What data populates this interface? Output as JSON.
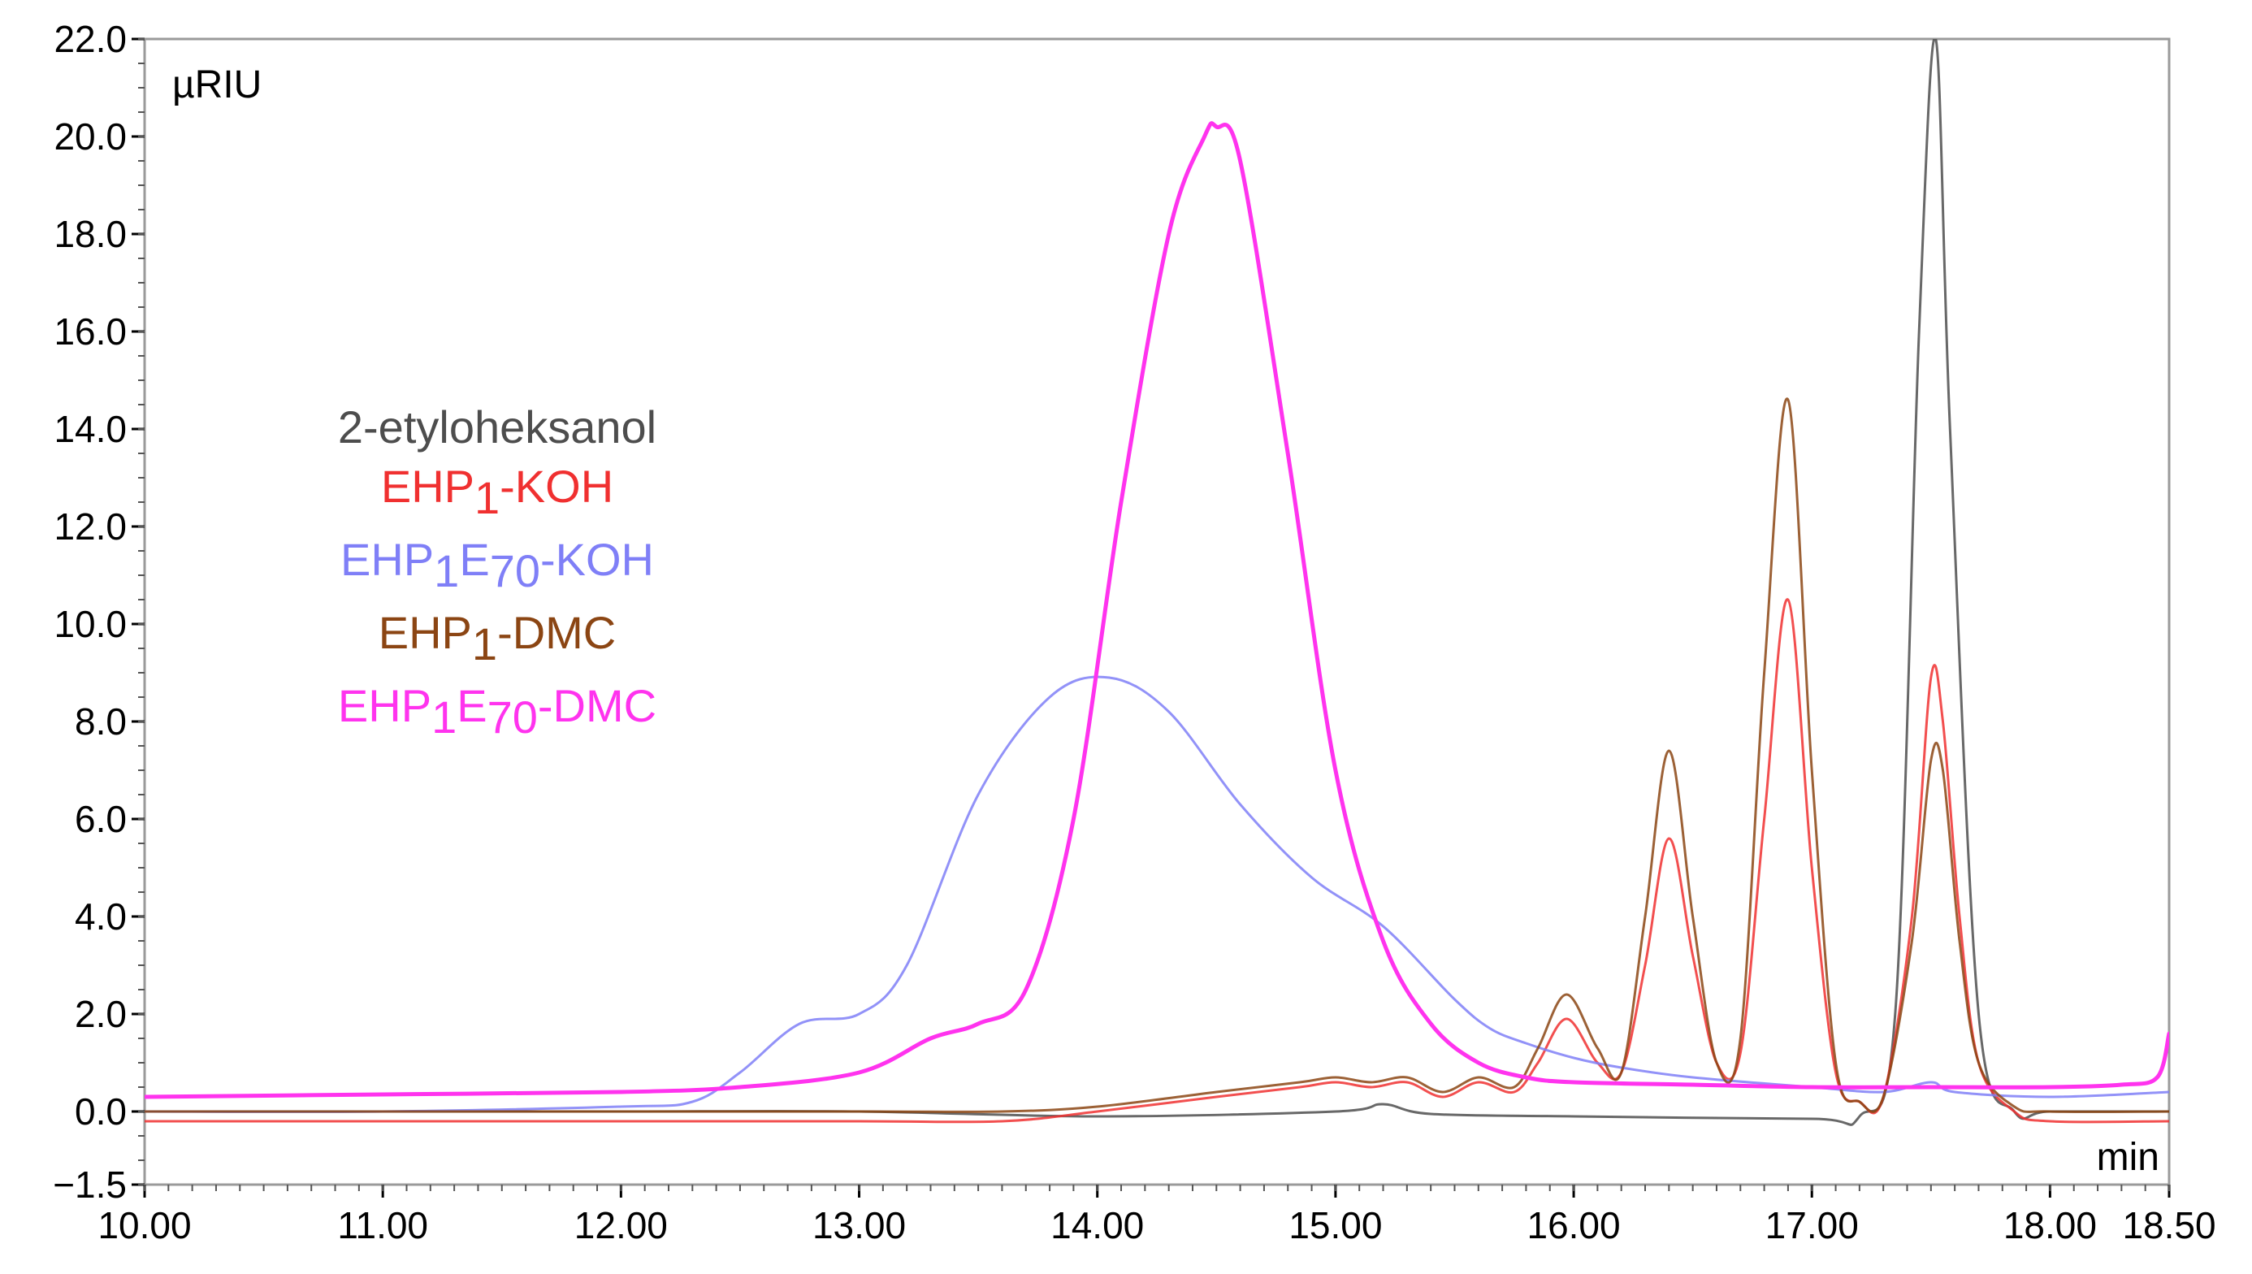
{
  "chart_data": {
    "type": "line",
    "title": "",
    "xlabel": "min",
    "ylabel": "µRIU",
    "xlim": [
      10.0,
      18.5
    ],
    "ylim": [
      -1.5,
      22.0
    ],
    "x_ticks": [
      "10.00",
      "11.00",
      "12.00",
      "13.00",
      "14.00",
      "15.00",
      "16.00",
      "17.00",
      "18.00",
      "18.50"
    ],
    "y_ticks": [
      "22.0",
      "20.0",
      "18.0",
      "16.0",
      "14.0",
      "12.0",
      "10.0",
      "8.0",
      "6.0",
      "4.0",
      "2.0",
      "0.0",
      "−1.5"
    ],
    "grid": false,
    "legend_position": "left",
    "series": [
      {
        "name": "2-etyloheksanol",
        "legend": [
          {
            "t": "2-etyloheksanol",
            "sub": false
          }
        ],
        "color": "#4d4d4d",
        "x": [
          10.0,
          11.0,
          12.0,
          13.0,
          14.0,
          15.0,
          15.2,
          15.4,
          16.0,
          17.0,
          17.2,
          17.35,
          17.45,
          17.52,
          17.58,
          17.7,
          17.85,
          18.0,
          18.5
        ],
        "y": [
          0.0,
          0.0,
          0.0,
          0.0,
          -0.1,
          0.0,
          0.15,
          -0.05,
          -0.1,
          -0.15,
          -0.1,
          2.0,
          16.0,
          22.0,
          14.0,
          2.0,
          0.0,
          0.0,
          0.0
        ]
      },
      {
        "name": "EHP1-KOH",
        "legend": [
          {
            "t": "EHP",
            "sub": false
          },
          {
            "t": "1",
            "sub": true
          },
          {
            "t": "-KOH",
            "sub": false
          }
        ],
        "color": "#f03030",
        "x": [
          10.0,
          11.0,
          12.0,
          13.0,
          13.6,
          14.0,
          14.5,
          14.85,
          15.0,
          15.15,
          15.3,
          15.45,
          15.6,
          15.75,
          15.85,
          15.97,
          16.1,
          16.2,
          16.3,
          16.4,
          16.5,
          16.6,
          16.7,
          16.8,
          16.9,
          17.0,
          17.1,
          17.2,
          17.3,
          17.42,
          17.5,
          17.55,
          17.62,
          17.7,
          17.85,
          18.0,
          18.5
        ],
        "y": [
          -0.2,
          -0.2,
          -0.2,
          -0.2,
          -0.2,
          0.0,
          0.3,
          0.5,
          0.6,
          0.5,
          0.6,
          0.3,
          0.6,
          0.4,
          1.0,
          1.9,
          1.0,
          0.8,
          3.0,
          5.6,
          3.2,
          1.0,
          1.2,
          6.0,
          10.5,
          5.0,
          0.8,
          0.2,
          0.3,
          4.0,
          8.9,
          8.0,
          4.0,
          1.0,
          0.0,
          -0.2,
          -0.2
        ]
      },
      {
        "name": "EHP1E70-KOH",
        "legend": [
          {
            "t": "EHP",
            "sub": false
          },
          {
            "t": "1",
            "sub": true
          },
          {
            "t": "E",
            "sub": false
          },
          {
            "t": "70",
            "sub": true
          },
          {
            "t": "-KOH",
            "sub": false
          }
        ],
        "color": "#7f7ff7",
        "x": [
          10.0,
          11.0,
          12.0,
          12.3,
          12.5,
          12.75,
          13.0,
          13.2,
          13.5,
          13.8,
          14.05,
          14.3,
          14.6,
          14.9,
          15.2,
          15.5,
          15.65,
          15.8,
          16.0,
          16.2,
          16.5,
          17.0,
          17.3,
          17.5,
          17.6,
          18.0,
          18.5
        ],
        "y": [
          0.0,
          0.0,
          0.1,
          0.2,
          0.8,
          1.8,
          2.0,
          3.0,
          6.5,
          8.5,
          8.9,
          8.2,
          6.3,
          4.8,
          3.8,
          2.3,
          1.7,
          1.4,
          1.1,
          0.9,
          0.7,
          0.5,
          0.4,
          0.6,
          0.4,
          0.3,
          0.4
        ]
      },
      {
        "name": "EHP1-DMC",
        "legend": [
          {
            "t": "EHP",
            "sub": false
          },
          {
            "t": "1",
            "sub": true
          },
          {
            "t": "-DMC",
            "sub": false
          }
        ],
        "color": "#8b4513",
        "x": [
          10.0,
          11.0,
          12.0,
          13.0,
          13.6,
          14.0,
          14.5,
          14.85,
          15.0,
          15.15,
          15.3,
          15.45,
          15.6,
          15.75,
          15.85,
          15.97,
          16.1,
          16.2,
          16.3,
          16.4,
          16.5,
          16.6,
          16.7,
          16.8,
          16.9,
          17.0,
          17.1,
          17.2,
          17.3,
          17.42,
          17.5,
          17.55,
          17.62,
          17.7,
          17.85,
          18.0,
          18.5
        ],
        "y": [
          0.0,
          0.0,
          0.0,
          0.0,
          0.0,
          0.1,
          0.4,
          0.6,
          0.7,
          0.6,
          0.7,
          0.4,
          0.7,
          0.5,
          1.3,
          2.4,
          1.3,
          0.8,
          4.0,
          7.4,
          4.0,
          1.0,
          1.5,
          9.0,
          14.6,
          7.0,
          1.0,
          0.2,
          0.3,
          3.5,
          7.2,
          7.0,
          3.5,
          1.0,
          0.1,
          0.0,
          0.0
        ]
      },
      {
        "name": "EHP1E70-DMC",
        "legend": [
          {
            "t": "EHP",
            "sub": false
          },
          {
            "t": "1",
            "sub": true
          },
          {
            "t": "E",
            "sub": false
          },
          {
            "t": "70",
            "sub": true
          },
          {
            "t": "-DMC",
            "sub": false
          }
        ],
        "color": "#ff33ee",
        "x": [
          10.0,
          11.0,
          12.0,
          12.5,
          13.0,
          13.3,
          13.5,
          13.7,
          13.9,
          14.1,
          14.3,
          14.45,
          14.5,
          14.6,
          14.8,
          15.0,
          15.2,
          15.4,
          15.6,
          15.8,
          16.0,
          16.5,
          17.0,
          17.5,
          18.0,
          18.3,
          18.45,
          18.5
        ],
        "y": [
          0.3,
          0.35,
          0.4,
          0.5,
          0.8,
          1.5,
          1.8,
          2.5,
          6.0,
          12.5,
          18.0,
          20.0,
          20.2,
          19.5,
          13.5,
          7.0,
          3.5,
          1.8,
          1.0,
          0.7,
          0.6,
          0.55,
          0.5,
          0.5,
          0.5,
          0.55,
          0.7,
          1.6
        ]
      }
    ]
  }
}
